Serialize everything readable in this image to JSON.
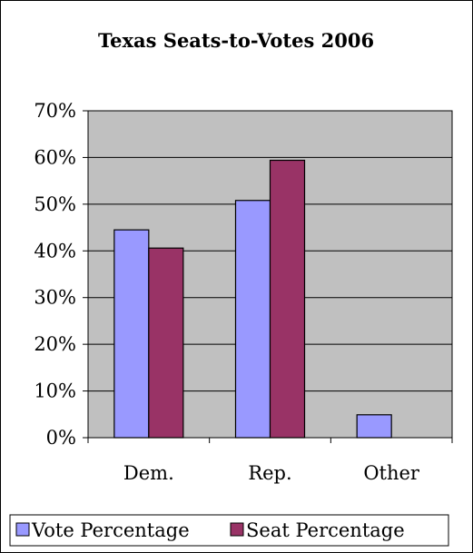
{
  "chart_data": {
    "type": "bar",
    "title": "Texas Seats-to-Votes 2006",
    "xlabel": "",
    "ylabel": "",
    "categories": [
      "Dem.",
      "Rep.",
      "Other"
    ],
    "series": [
      {
        "name": "Vote Percentage",
        "values": [
          44.5,
          50.8,
          4.9
        ],
        "color": "#9999ff"
      },
      {
        "name": "Seat Percentage",
        "values": [
          40.6,
          59.4,
          null
        ],
        "color": "#993366"
      }
    ],
    "ylim": [
      0,
      70
    ],
    "y_ticks": [
      0,
      10,
      20,
      30,
      40,
      50,
      60,
      70
    ],
    "y_tick_labels": [
      "0%",
      "10%",
      "20%",
      "30%",
      "40%",
      "50%",
      "60%",
      "70%"
    ],
    "grid": true,
    "legend_position": "bottom",
    "colors": {
      "plot_background": "#c0c0c0",
      "gridline": "#000000",
      "border": "#000000"
    }
  }
}
